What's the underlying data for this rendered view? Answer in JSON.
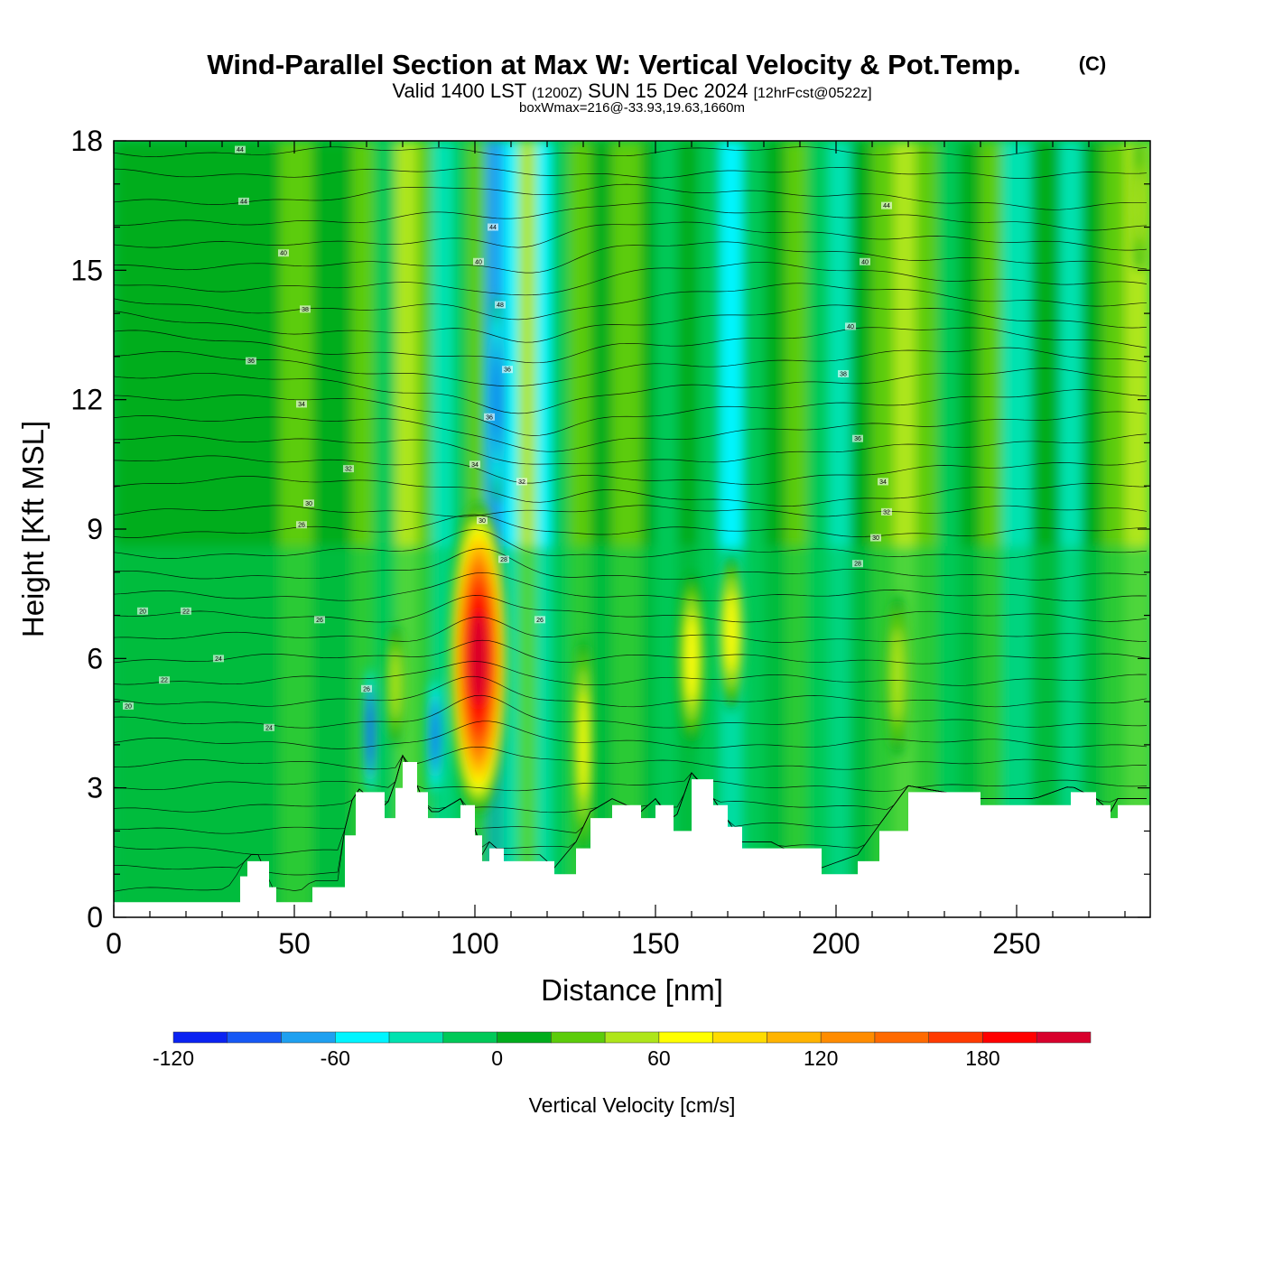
{
  "title": {
    "main": "Wind-Parallel Section at Max W: Vertical Velocity & Pot.Temp.",
    "copyright": "(C)",
    "valid_prefix": "Valid 1400 LST",
    "valid_utc": "(1200Z)",
    "valid_date": "SUN 15 Dec 2024",
    "forecast": "[12hrFcst@0522z]",
    "box_wmax": "boxWmax=216@-33.93,19.63,1660m"
  },
  "chart_data": {
    "type": "heatmap",
    "title": "Wind-Parallel Section at Max W: Vertical Velocity & Pot.Temp.",
    "xlabel": "Distance [nm]",
    "ylabel": "Height [Kft MSL]",
    "xlim": [
      0,
      287
    ],
    "ylim": [
      0,
      18
    ],
    "x_ticks": [
      0,
      50,
      100,
      150,
      200,
      250
    ],
    "y_ticks": [
      0,
      3,
      6,
      9,
      12,
      15,
      18
    ],
    "colorbar": {
      "label": "Vertical Velocity [cm/s]",
      "bounds": [
        -120,
        -100,
        -80,
        -60,
        -40,
        -20,
        0,
        20,
        40,
        60,
        80,
        100,
        120,
        140,
        160,
        180,
        200,
        220
      ],
      "colors": [
        "#0a22f2",
        "#1658f5",
        "#1ea0f0",
        "#00f5ff",
        "#00e2b0",
        "#00c958",
        "#00ad1c",
        "#5ccc0a",
        "#aee61a",
        "#ffff00",
        "#ffdc00",
        "#ffb400",
        "#ff8c00",
        "#ff6a00",
        "#ff3a00",
        "#ff0000",
        "#d8002c"
      ],
      "tick_values": [
        -120,
        -60,
        0,
        60,
        120,
        180
      ],
      "tick_labels": [
        "-120",
        "-60",
        "0",
        "60",
        "120",
        "180"
      ]
    },
    "max_w_cm_s": 216,
    "terrain": {
      "x": [
        0,
        30,
        35,
        37,
        40,
        43,
        45,
        50,
        55,
        62,
        64,
        67,
        75,
        78,
        80,
        84,
        87,
        90,
        96,
        100,
        102,
        104,
        108,
        112,
        118,
        122,
        128,
        132,
        138,
        146,
        150,
        155,
        160,
        166,
        170,
        174,
        182,
        196,
        206,
        212,
        220,
        240,
        255,
        265,
        272,
        276,
        278,
        287
      ],
      "height": [
        0.35,
        0.35,
        0.95,
        1.3,
        1.3,
        0.7,
        0.35,
        0.35,
        0.7,
        0.7,
        1.9,
        2.9,
        2.3,
        3.0,
        3.6,
        2.9,
        2.3,
        2.3,
        2.6,
        1.9,
        1.3,
        1.6,
        1.3,
        1.3,
        1.3,
        1.0,
        1.6,
        2.3,
        2.6,
        2.3,
        2.6,
        2.0,
        3.2,
        2.6,
        2.1,
        1.6,
        1.6,
        1.0,
        1.3,
        2.0,
        2.9,
        2.6,
        2.6,
        2.9,
        2.6,
        2.3,
        2.6,
        2.6
      ]
    },
    "vertical_velocity_features": [
      {
        "x_center": 101,
        "z_bottom": 2.5,
        "z_top": 9,
        "peak_cm_s": 216
      },
      {
        "x_center": 160,
        "z_bottom": 4,
        "z_top": 8,
        "peak_cm_s": 80
      },
      {
        "x_center": 171,
        "z_bottom": 5,
        "z_top": 8,
        "peak_cm_s": 70
      },
      {
        "x_center": 217,
        "z_bottom": 4,
        "z_top": 7.5,
        "peak_cm_s": 50
      },
      {
        "x_center": 130,
        "z_bottom": 2,
        "z_top": 7,
        "peak_cm_s": 70
      },
      {
        "x_center": 78,
        "z_bottom": 4,
        "z_top": 7,
        "peak_cm_s": 55
      },
      {
        "x_center": 71,
        "z_bottom": 3,
        "z_top": 6,
        "peak_cm_s": -110
      },
      {
        "x_center": 89,
        "z_bottom": 3,
        "z_top": 5,
        "peak_cm_s": -90
      },
      {
        "x_center": 106,
        "z_bottom": 10,
        "z_top": 14,
        "peak_cm_s": -90
      }
    ],
    "theta_contour_labels": [
      "44",
      "44",
      "40",
      "38",
      "36",
      "34",
      "32",
      "30",
      "26",
      "26",
      "24",
      "22",
      "20",
      "22",
      "20",
      "24",
      "26",
      "44",
      "40",
      "48",
      "36",
      "36",
      "34",
      "32",
      "30",
      "28",
      "26",
      "44",
      "40",
      "40",
      "38",
      "36",
      "34",
      "32",
      "30",
      "28"
    ]
  }
}
